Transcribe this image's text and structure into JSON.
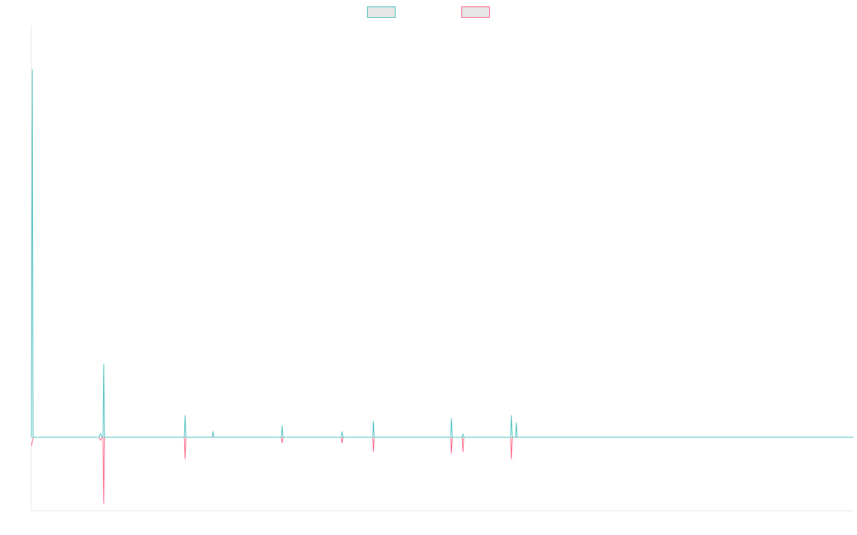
{
  "colors": {
    "background": "#ffffff",
    "axis": "#e5e5e5",
    "legend_fill": "#e6e6e6"
  },
  "legend": {
    "placement": "top-center"
  },
  "chart_data": {
    "type": "line",
    "title": "",
    "xlabel": "",
    "ylabel": "",
    "grid": false,
    "x_range": [
      0,
      1000
    ],
    "ylim": [
      -100,
      560
    ],
    "series": [
      {
        "color": "#4bc0c0",
        "points": [
          [
            0,
            0
          ],
          [
            1,
            500
          ],
          [
            2,
            0
          ],
          [
            82,
            0
          ],
          [
            84,
            5
          ],
          [
            86,
            0
          ],
          [
            87,
            0
          ],
          [
            88,
            100
          ],
          [
            89,
            0
          ],
          [
            186,
            0
          ],
          [
            187,
            30
          ],
          [
            188,
            0
          ],
          [
            220,
            0
          ],
          [
            221,
            8
          ],
          [
            222,
            0
          ],
          [
            304,
            0
          ],
          [
            305,
            16
          ],
          [
            306,
            0
          ],
          [
            377,
            0
          ],
          [
            378,
            8
          ],
          [
            379,
            0
          ],
          [
            415,
            0
          ],
          [
            416,
            22
          ],
          [
            417,
            0
          ],
          [
            510,
            0
          ],
          [
            511,
            26
          ],
          [
            512,
            0
          ],
          [
            524,
            0
          ],
          [
            525,
            4
          ],
          [
            526,
            0
          ],
          [
            583,
            0
          ],
          [
            584,
            30
          ],
          [
            585,
            0
          ],
          [
            589,
            0
          ],
          [
            590,
            20
          ],
          [
            591,
            0
          ],
          [
            1000,
            0
          ]
        ]
      },
      {
        "color": "#ff6384",
        "points": [
          [
            0,
            -12
          ],
          [
            2,
            0
          ],
          [
            82,
            0
          ],
          [
            84,
            -4
          ],
          [
            86,
            0
          ],
          [
            87,
            0
          ],
          [
            88,
            -90
          ],
          [
            89,
            0
          ],
          [
            186,
            0
          ],
          [
            187,
            -30
          ],
          [
            188,
            0
          ],
          [
            304,
            0
          ],
          [
            305,
            -8
          ],
          [
            306,
            0
          ],
          [
            377,
            0
          ],
          [
            378,
            -8
          ],
          [
            379,
            0
          ],
          [
            415,
            0
          ],
          [
            416,
            -20
          ],
          [
            417,
            0
          ],
          [
            510,
            0
          ],
          [
            511,
            -22
          ],
          [
            512,
            0
          ],
          [
            524,
            0
          ],
          [
            525,
            -20
          ],
          [
            526,
            0
          ],
          [
            583,
            0
          ],
          [
            584,
            -30
          ],
          [
            585,
            0
          ],
          [
            1000,
            0
          ]
        ]
      }
    ]
  }
}
